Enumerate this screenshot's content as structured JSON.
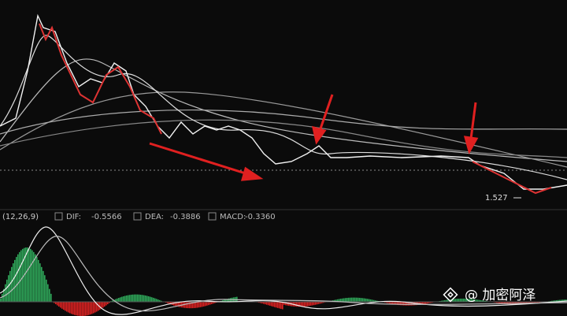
{
  "indicator": {
    "params": "(12,26,9)",
    "items": [
      {
        "label": "DIF:",
        "value": "-0.5566"
      },
      {
        "label": "DEA:",
        "value": "-0.3886"
      },
      {
        "label": "MACD:",
        "value": "-0.3360"
      }
    ]
  },
  "low_label": "1.527",
  "watermark": "@ 加密阿泽"
}
